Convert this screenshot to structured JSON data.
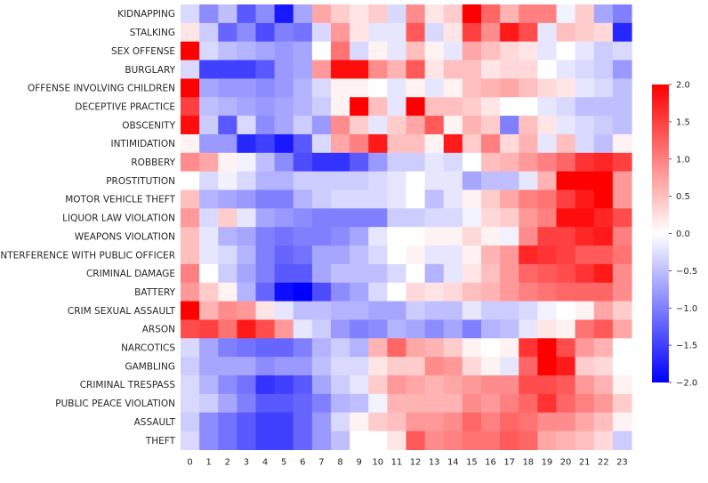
{
  "chart_data": {
    "type": "heatmap",
    "title": "",
    "xlabel": "",
    "ylabel": "",
    "x_categories": [
      "0",
      "1",
      "2",
      "3",
      "4",
      "5",
      "6",
      "7",
      "8",
      "9",
      "10",
      "11",
      "12",
      "13",
      "14",
      "15",
      "16",
      "17",
      "18",
      "19",
      "20",
      "21",
      "22",
      "23"
    ],
    "y_categories": [
      "KIDNAPPING",
      "STALKING",
      "SEX OFFENSE",
      "BURGLARY",
      "OFFENSE INVOLVING CHILDREN",
      "DECEPTIVE PRACTICE",
      "OBSCENITY",
      "INTIMIDATION",
      "ROBBERY",
      "PROSTITUTION",
      "MOTOR VEHICLE THEFT",
      "LIQUOR LAW VIOLATION",
      "WEAPONS VIOLATION",
      "INTERFERENCE WITH PUBLIC OFFICER",
      "CRIMINAL DAMAGE",
      "BATTERY",
      "CRIM SEXUAL ASSAULT",
      "ARSON",
      "NARCOTICS",
      "GAMBLING",
      "CRIMINAL TRESPASS",
      "PUBLIC PEACE VIOLATION",
      "ASSAULT",
      "THEFT"
    ],
    "values": [
      [
        -0.3,
        -0.9,
        -0.5,
        -1.3,
        -0.9,
        -1.8,
        -0.7,
        0.7,
        0.4,
        0.2,
        0.4,
        -0.3,
        0.9,
        0.2,
        0.4,
        2.0,
        1.2,
        0.6,
        1.0,
        1.0,
        -0.1,
        0.4,
        -0.7,
        -1.0
      ],
      [
        0.2,
        -0.4,
        -1.2,
        -0.9,
        -1.4,
        -1.0,
        -1.1,
        -0.3,
        0.8,
        0.2,
        -0.2,
        -0.2,
        1.3,
        -0.3,
        0.2,
        1.5,
        0.9,
        1.8,
        1.4,
        -0.2,
        0.5,
        0.4,
        0.3,
        -1.7
      ],
      [
        2.0,
        -0.3,
        -0.5,
        -0.6,
        -0.7,
        -0.8,
        -0.7,
        0.0,
        1.1,
        -0.3,
        0.1,
        -0.2,
        0.5,
        0.1,
        -0.2,
        0.7,
        0.5,
        0.3,
        0.2,
        -0.2,
        0.0,
        -0.2,
        -0.4,
        -0.3
      ],
      [
        -0.3,
        -1.5,
        -1.5,
        -1.5,
        -1.3,
        -0.8,
        -0.7,
        0.8,
        1.9,
        1.9,
        0.9,
        0.6,
        1.3,
        0.2,
        0.5,
        0.5,
        0.2,
        0.3,
        0.3,
        0.0,
        -0.2,
        -0.3,
        -0.4,
        -0.8
      ],
      [
        2.0,
        -0.7,
        -0.8,
        -0.8,
        -0.9,
        -0.8,
        -0.6,
        -0.3,
        0.1,
        0.1,
        0.0,
        -0.2,
        0.1,
        -0.2,
        0.1,
        0.5,
        0.6,
        0.7,
        0.5,
        0.3,
        0.2,
        -0.2,
        -0.3,
        -0.5
      ],
      [
        1.5,
        -0.5,
        -0.6,
        -0.7,
        -0.8,
        -0.7,
        -0.6,
        -0.4,
        0.1,
        2.0,
        0.5,
        -0.2,
        2.0,
        0.5,
        0.5,
        0.4,
        0.2,
        0.0,
        0.0,
        -0.2,
        -0.3,
        -0.5,
        -0.5,
        -0.5
      ],
      [
        1.9,
        -0.4,
        -1.3,
        -0.3,
        -0.9,
        -0.7,
        -0.4,
        -0.8,
        0.9,
        0.4,
        -0.2,
        0.4,
        0.7,
        1.3,
        0.1,
        0.6,
        0.4,
        -1.0,
        0.5,
        0.2,
        -0.2,
        -0.3,
        -0.4,
        -0.5
      ],
      [
        0.1,
        -0.8,
        -0.8,
        -1.7,
        -1.5,
        -1.8,
        -1.3,
        -0.3,
        0.7,
        1.0,
        1.8,
        0.5,
        0.5,
        0.1,
        1.8,
        0.4,
        1.0,
        0.3,
        0.6,
        -0.2,
        0.5,
        -0.3,
        -0.5,
        0.1
      ],
      [
        0.9,
        0.7,
        0.1,
        -0.1,
        -0.5,
        -0.9,
        -1.4,
        -1.6,
        -1.6,
        -1.3,
        -0.8,
        -0.4,
        -0.4,
        -0.2,
        -0.3,
        0.0,
        0.5,
        0.6,
        0.8,
        1.0,
        1.2,
        1.6,
        1.7,
        1.5
      ],
      [
        0.0,
        -0.3,
        -0.1,
        -0.3,
        -0.6,
        -0.6,
        -0.4,
        -0.4,
        -0.4,
        -0.4,
        -0.3,
        -0.2,
        0.0,
        -0.2,
        -0.2,
        -0.7,
        -0.5,
        -0.5,
        -0.2,
        0.6,
        2.0,
        2.0,
        2.0,
        0.8
      ],
      [
        0.5,
        -0.6,
        -0.7,
        -0.8,
        -1.0,
        -1.0,
        -0.6,
        -0.4,
        -0.3,
        -0.3,
        -0.3,
        -0.2,
        0.0,
        -0.5,
        -0.2,
        0.1,
        0.4,
        0.7,
        1.0,
        1.1,
        1.5,
        1.8,
        2.0,
        0.8
      ],
      [
        0.8,
        -0.3,
        0.4,
        -0.2,
        -0.7,
        -0.8,
        -0.9,
        -1.0,
        -1.0,
        -1.0,
        -1.0,
        -0.4,
        -0.4,
        -0.3,
        -0.3,
        -0.1,
        0.3,
        0.4,
        0.8,
        1.0,
        1.9,
        1.9,
        1.7,
        1.4
      ],
      [
        0.5,
        -0.2,
        -0.6,
        -0.7,
        -1.0,
        -1.1,
        -1.0,
        -1.0,
        -0.9,
        -0.7,
        -0.2,
        0.0,
        0.0,
        0.1,
        0.1,
        0.3,
        0.1,
        -0.1,
        0.9,
        1.5,
        1.5,
        1.7,
        1.8,
        1.0
      ],
      [
        0.5,
        -0.2,
        -0.3,
        -0.6,
        -1.0,
        -1.2,
        -1.1,
        -0.7,
        -0.7,
        -0.5,
        -0.3,
        0.0,
        0.1,
        -0.2,
        -0.2,
        0.1,
        0.6,
        0.8,
        1.7,
        1.6,
        1.5,
        1.3,
        1.3,
        1.1
      ],
      [
        1.0,
        0.0,
        -0.4,
        -0.7,
        -1.0,
        -1.3,
        -1.3,
        -0.7,
        -0.5,
        -0.5,
        -0.5,
        -0.3,
        0.0,
        -0.6,
        -0.2,
        0.2,
        0.5,
        0.8,
        1.2,
        1.3,
        1.4,
        1.6,
        1.8,
        0.9
      ],
      [
        0.8,
        0.4,
        0.1,
        -0.6,
        -1.2,
        -1.9,
        -2.0,
        -1.4,
        -0.9,
        -0.7,
        -0.3,
        0.0,
        0.3,
        0.2,
        0.3,
        0.5,
        0.6,
        0.8,
        1.0,
        1.1,
        1.2,
        1.2,
        1.2,
        0.9
      ],
      [
        2.0,
        0.6,
        0.9,
        0.8,
        0.2,
        -0.2,
        -0.5,
        -0.5,
        -0.6,
        -0.6,
        -0.7,
        -0.7,
        -0.4,
        -0.5,
        -0.5,
        -0.2,
        -0.4,
        -0.4,
        -0.3,
        -0.1,
        0.0,
        0.1,
        0.7,
        0.4
      ],
      [
        1.4,
        1.5,
        1.1,
        1.8,
        1.4,
        0.8,
        -0.2,
        -0.4,
        -0.8,
        -1.0,
        -0.9,
        -0.6,
        -0.7,
        -0.9,
        -0.7,
        -1.0,
        -0.6,
        -0.5,
        -0.2,
        0.2,
        0.1,
        1.1,
        1.3,
        0.7
      ],
      [
        -0.3,
        -0.7,
        -1.0,
        -1.1,
        -1.2,
        -1.2,
        -1.0,
        -0.6,
        -0.4,
        -0.6,
        0.6,
        1.2,
        0.7,
        0.6,
        0.4,
        0.1,
        0.0,
        0.1,
        1.6,
        2.0,
        1.4,
        0.8,
        0.6,
        0.0
      ],
      [
        -0.4,
        -0.7,
        -0.7,
        -0.7,
        -0.9,
        -0.8,
        -0.8,
        -0.5,
        -0.3,
        -0.3,
        0.2,
        0.4,
        0.4,
        0.9,
        0.8,
        0.3,
        0.1,
        -0.2,
        1.2,
        2.0,
        1.8,
        0.4,
        0.3,
        0.0
      ],
      [
        -0.3,
        -0.6,
        -0.9,
        -1.1,
        -1.6,
        -1.5,
        -1.3,
        -0.7,
        -0.4,
        -0.2,
        0.4,
        0.8,
        0.7,
        0.6,
        0.7,
        0.8,
        0.9,
        0.9,
        1.4,
        1.4,
        1.3,
        0.8,
        0.6,
        0.1
      ],
      [
        -0.3,
        -0.4,
        -0.7,
        -1.0,
        -1.3,
        -1.3,
        -1.2,
        -1.0,
        -0.6,
        -0.5,
        -0.1,
        0.6,
        0.6,
        0.6,
        0.6,
        0.9,
        0.8,
        1.0,
        1.2,
        1.6,
        1.2,
        1.0,
        0.8,
        0.4
      ],
      [
        -0.4,
        -0.9,
        -1.1,
        -1.3,
        -1.5,
        -1.5,
        -1.2,
        -0.8,
        -0.3,
        0.1,
        0.4,
        0.5,
        0.8,
        0.8,
        0.9,
        1.2,
        1.0,
        1.2,
        1.1,
        0.9,
        0.9,
        0.7,
        0.5,
        0.1
      ],
      [
        -0.3,
        -0.9,
        -1.1,
        -1.3,
        -1.5,
        -1.5,
        -1.2,
        -0.8,
        -0.5,
        0.0,
        0.0,
        0.2,
        1.3,
        0.9,
        1.0,
        1.1,
        1.1,
        1.3,
        1.2,
        0.7,
        0.6,
        0.5,
        0.3,
        -0.4
      ]
    ],
    "vmin": -2.0,
    "vmax": 2.0,
    "colormap": "bwr",
    "colorbar_ticks": [
      "−2.0",
      "−1.5",
      "−1.0",
      "−0.5",
      "0.0",
      "0.5",
      "1.0",
      "1.5",
      "2.0"
    ],
    "colorbar_tick_values": [
      -2.0,
      -1.5,
      -1.0,
      -0.5,
      0.0,
      0.5,
      1.0,
      1.5,
      2.0
    ],
    "grid": false,
    "legend": "colorbar-right"
  }
}
